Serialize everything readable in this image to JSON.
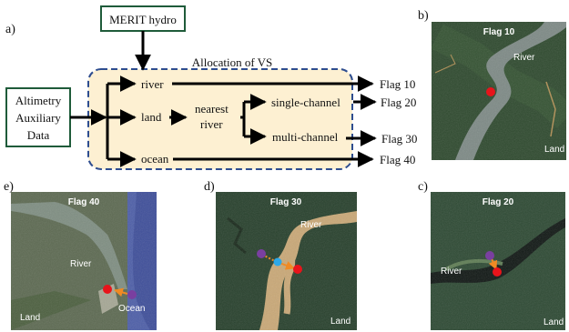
{
  "panel_labels": {
    "a": "a)",
    "b": "b)",
    "c": "c)",
    "d": "d)",
    "e": "e)"
  },
  "flowchart": {
    "merit_box": "MERIT hydro",
    "input_box_lines": [
      "Altimetry",
      "Auxiliary",
      "Data"
    ],
    "allocation_title": "Allocation of VS",
    "nodes": {
      "river": "river",
      "land": "land",
      "ocean": "ocean",
      "nearest_line1": "nearest",
      "nearest_line2": "river",
      "single": "single-channel",
      "multi": "multi-channel"
    },
    "flags": {
      "f10": "Flag 10",
      "f20": "Flag 20",
      "f30": "Flag 30",
      "f40": "Flag 40"
    }
  },
  "maps": {
    "b": {
      "title": "Flag 10",
      "labels": {
        "river": "River",
        "land": "Land"
      }
    },
    "c": {
      "title": "Flag 20",
      "labels": {
        "river": "River",
        "land": "Land"
      }
    },
    "d": {
      "title": "Flag 30",
      "labels": {
        "river": "River",
        "land": "Land"
      }
    },
    "e": {
      "title": "Flag 40",
      "labels": {
        "river": "River",
        "land": "Land",
        "ocean": "Ocean"
      }
    }
  },
  "colors": {
    "allocation_fill": "#fdf0d2",
    "allocation_border": "#2e4d8f",
    "box_border": "#1f5b3a",
    "vs_point": "#e8141b",
    "nearest_point": "#7a3fa0",
    "snap_point": "#2ea8e8",
    "offset_arrow": "#f08a24"
  }
}
